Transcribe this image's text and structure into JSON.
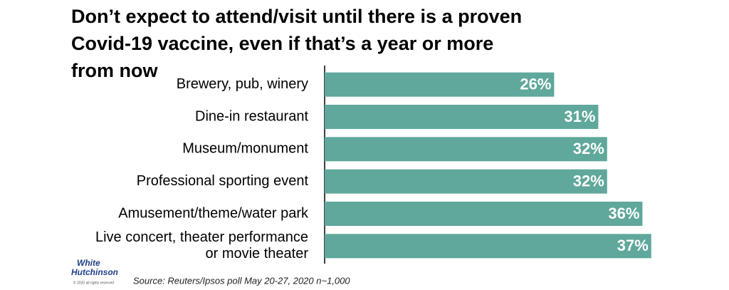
{
  "chart_data": {
    "type": "bar",
    "orientation": "horizontal",
    "title": "Don’t expect to attend/visit until there is a proven Covid-19 vaccine, even if that’s a year or more from now",
    "categories": [
      "Brewery, pub, winery",
      "Dine-in restaurant",
      "Museum/monument",
      "Professional sporting event",
      "Amusement/theme/water park",
      "Live concert, theater performance\nor movie theater"
    ],
    "values": [
      26,
      31,
      32,
      32,
      36,
      37
    ],
    "value_labels": [
      "26%",
      "31%",
      "32%",
      "32%",
      "36%",
      "37%"
    ],
    "color": "#5fa89b",
    "xlim": [
      0,
      45
    ],
    "source": "Source: Reuters/Ipsos poll May 20-27, 2020 n~1,000",
    "logo": {
      "line1": "White",
      "line2": "Hutchinson",
      "note": "© 2020 all rights reserved"
    }
  }
}
